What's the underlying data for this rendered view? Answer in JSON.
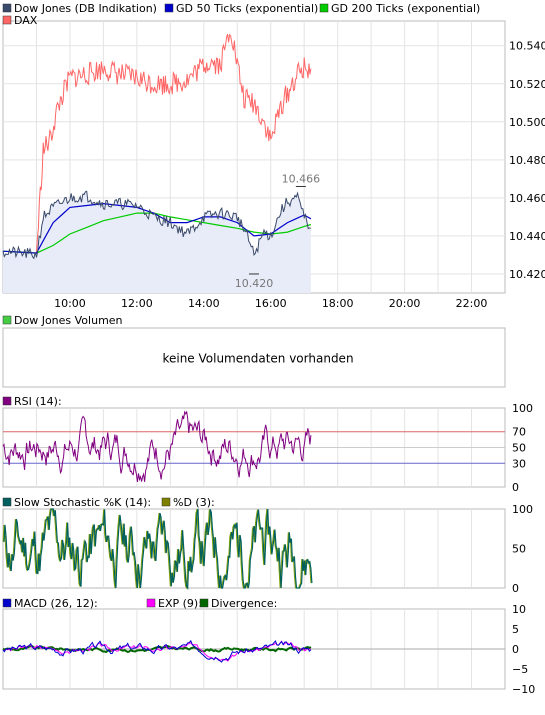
{
  "chart_data": [
    {
      "type": "line",
      "panel": "price",
      "legend": [
        {
          "label": "Dow Jones (DB Indikation)",
          "color": "#3a4a6b"
        },
        {
          "label": "GD 50 Ticks (exponential)",
          "color": "#0000cc"
        },
        {
          "label": "GD 200 Ticks (exponential)",
          "color": "#00cc00"
        },
        {
          "label": "DAX",
          "color": "#ff6666"
        }
      ],
      "x_ticks": [
        "10:00",
        "12:00",
        "14:00",
        "16:00",
        "18:00",
        "20:00",
        "22:00"
      ],
      "xlim": [
        8.0,
        23.0
      ],
      "y_ticks": [
        "10.540",
        "10.520",
        "10.500",
        "10.480",
        "10.460",
        "10.440",
        "10.420"
      ],
      "ylim": [
        10.41,
        10.553
      ],
      "annotations": [
        {
          "text": "10.466",
          "x": 16.9,
          "y": 10.466
        },
        {
          "text": "10.420",
          "x": 15.5,
          "y": 10.42
        }
      ],
      "series": [
        {
          "name": "Dow Jones (DB Indikation)",
          "color": "#3a4a6b",
          "x": [
            8.0,
            8.5,
            9.0,
            9.2,
            9.5,
            10.0,
            10.5,
            11.0,
            11.5,
            12.0,
            12.5,
            13.0,
            13.5,
            13.8,
            14.0,
            14.5,
            15.0,
            15.3,
            15.5,
            15.8,
            16.0,
            16.3,
            16.5,
            16.8,
            17.0,
            17.2
          ],
          "y": [
            10.432,
            10.431,
            10.43,
            10.45,
            10.455,
            10.46,
            10.461,
            10.457,
            10.457,
            10.456,
            10.45,
            10.447,
            10.441,
            10.446,
            10.45,
            10.452,
            10.45,
            10.44,
            10.43,
            10.442,
            10.44,
            10.453,
            10.458,
            10.46,
            10.45,
            10.444
          ]
        },
        {
          "name": "GD 50 Ticks (exponential)",
          "color": "#0000cc",
          "x": [
            8.0,
            9.0,
            9.5,
            10.0,
            11.0,
            12.0,
            12.5,
            13.0,
            13.5,
            14.0,
            14.5,
            15.0,
            15.5,
            16.0,
            16.5,
            17.0,
            17.2
          ],
          "y": [
            10.432,
            10.431,
            10.447,
            10.455,
            10.457,
            10.455,
            10.452,
            10.447,
            10.447,
            10.45,
            10.45,
            10.447,
            10.44,
            10.441,
            10.447,
            10.451,
            10.449
          ]
        },
        {
          "name": "GD 200 Ticks (exponential)",
          "color": "#00cc00",
          "x": [
            8.0,
            9.0,
            9.5,
            10.0,
            11.0,
            12.0,
            12.5,
            13.0,
            14.0,
            15.0,
            15.5,
            16.0,
            16.5,
            17.0,
            17.2
          ],
          "y": [
            10.432,
            10.431,
            10.435,
            10.441,
            10.448,
            10.452,
            10.452,
            10.45,
            10.447,
            10.444,
            10.442,
            10.441,
            10.442,
            10.445,
            10.446
          ]
        },
        {
          "name": "DAX",
          "color": "#ff6666",
          "x": [
            9.0,
            9.2,
            9.4,
            9.6,
            9.8,
            10.0,
            10.5,
            11.0,
            11.5,
            12.0,
            12.5,
            13.0,
            13.5,
            14.0,
            14.2,
            14.5,
            14.8,
            15.0,
            15.2,
            15.5,
            15.8,
            16.0,
            16.3,
            16.5,
            16.8,
            17.0,
            17.2
          ],
          "y": [
            10.431,
            10.485,
            10.49,
            10.505,
            10.515,
            10.523,
            10.525,
            10.528,
            10.525,
            10.523,
            10.52,
            10.52,
            10.522,
            10.53,
            10.532,
            10.53,
            10.55,
            10.53,
            10.512,
            10.51,
            10.5,
            10.49,
            10.508,
            10.515,
            10.525,
            10.528,
            10.528
          ]
        }
      ]
    },
    {
      "type": "bar",
      "panel": "volume",
      "legend": [
        {
          "label": "Dow Jones Volumen",
          "color": "#44cc44"
        }
      ],
      "message": "keine Volumendaten vorhanden"
    },
    {
      "type": "line",
      "panel": "rsi",
      "legend": [
        {
          "label": "RSI (14):",
          "color": "#800080"
        }
      ],
      "y_ticks": [
        "100",
        "70",
        "50",
        "30",
        "0"
      ],
      "ylim": [
        0,
        100
      ],
      "levels": [
        {
          "value": 70,
          "color": "#dd6666"
        },
        {
          "value": 30,
          "color": "#6666cc"
        }
      ],
      "series": [
        {
          "name": "RSI (14)",
          "color": "#800080",
          "seed": 7,
          "mean": 52,
          "amp": 22
        }
      ]
    },
    {
      "type": "line",
      "panel": "stochastic",
      "legend": [
        {
          "label": "Slow Stochastic %K (14):",
          "color": "#006060"
        },
        {
          "label": "%D (3):",
          "color": "#808000"
        }
      ],
      "y_ticks": [
        "100",
        "50",
        "0"
      ],
      "ylim": [
        0,
        100
      ],
      "series": [
        {
          "name": "Slow Stochastic %K (14)",
          "color": "#006060",
          "seed": 11,
          "mean": 50,
          "amp": 48
        }
      ]
    },
    {
      "type": "line",
      "panel": "macd",
      "legend": [
        {
          "label": "MACD (26, 12):",
          "color": "#0000cc"
        },
        {
          "label": "EXP (9):",
          "color": "#ff00ff"
        },
        {
          "label": "Divergence:",
          "color": "#006600"
        }
      ],
      "y_ticks": [
        "10",
        "5",
        "0",
        "−5",
        "−10"
      ],
      "ylim": [
        -10,
        10
      ],
      "series": [
        {
          "name": "MACD (26, 12)",
          "color": "#0000cc",
          "seed": 3
        },
        {
          "name": "EXP (9)",
          "color": "#ff00ff",
          "seed": 5
        },
        {
          "name": "Divergence",
          "color": "#006600",
          "seed": 9
        }
      ]
    }
  ]
}
